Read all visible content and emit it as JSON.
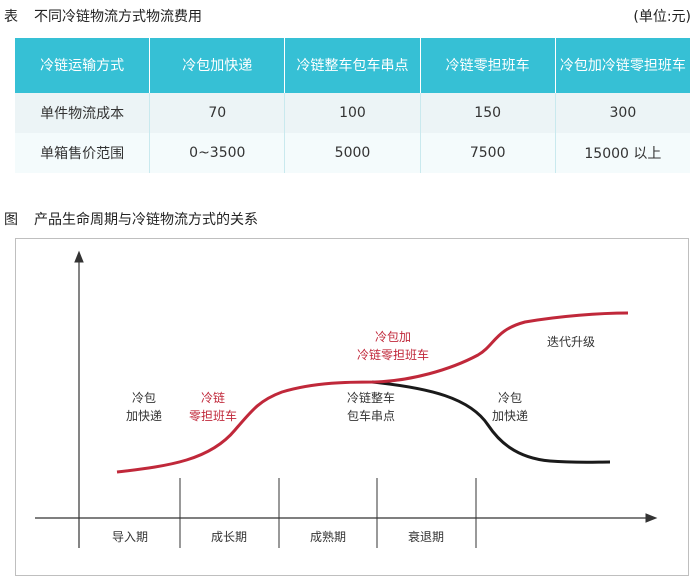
{
  "table": {
    "caption_tag": "表",
    "caption": "不同冷链物流方式物流费用",
    "unit": "(单位:元)",
    "headers": [
      "冷链运输方式",
      "冷包加快递",
      "冷链整车包车串点",
      "冷链零担班车",
      "冷包加冷链零担班车"
    ],
    "rows": [
      [
        "单件物流成本",
        "70",
        "100",
        "150",
        "300"
      ],
      [
        "单箱售价范围",
        "0~3500",
        "5000",
        "7500",
        "15000 以上"
      ]
    ]
  },
  "figure": {
    "caption_tag": "图",
    "caption": "产品生命周期与冷链物流方式的关系",
    "stages": [
      "导入期",
      "成长期",
      "成熟期",
      "衰退期"
    ],
    "labels": {
      "cold_pack_express_1": "冷包",
      "cold_pack_express_2": "加快递",
      "ltl_red_1": "冷链",
      "ltl_red_2": "零担班车",
      "mix_red_1": "冷包加",
      "mix_red_2": "冷链零担班车",
      "iteration": "迭代升级",
      "truck_1": "冷链整车",
      "truck_2": "包车串点",
      "decline_express_1": "冷包",
      "decline_express_2": "加快递"
    },
    "colors": {
      "red_curve": "#c0283a",
      "black_curve": "#1a1a1a",
      "red_text": "#c0283a",
      "header_bg": "#36c0d5"
    }
  }
}
